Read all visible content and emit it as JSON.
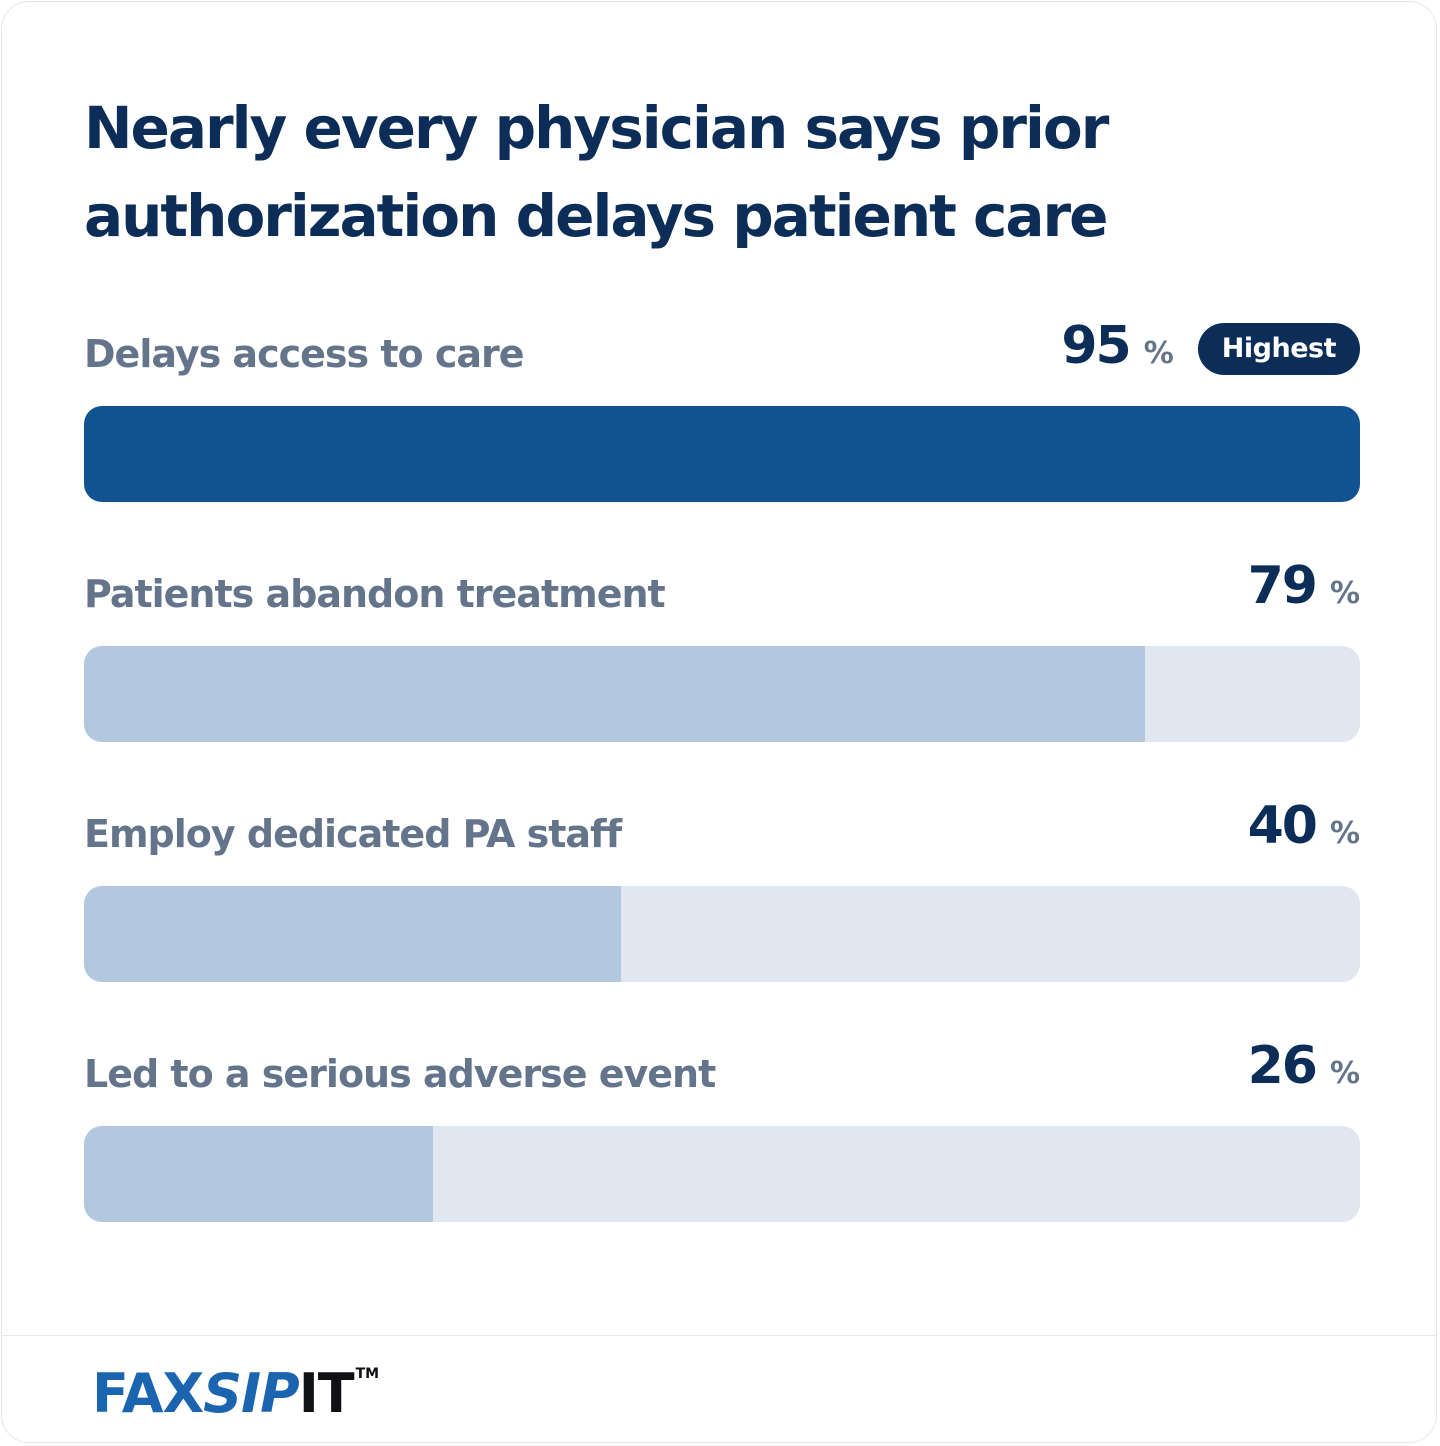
{
  "title": "Nearly every physician says prior authorization delays patient care",
  "chart_data": {
    "type": "bar",
    "orientation": "horizontal",
    "title": "Nearly every physician says prior authorization delays patient care",
    "categories": [
      "Delays access to care",
      "Patients abandon treatment",
      "Employ dedicated PA staff",
      "Led to a serious adverse event"
    ],
    "values": [
      95,
      79,
      40,
      26
    ],
    "unit": "%",
    "xlim": [
      0,
      100
    ],
    "highlight": {
      "index": 0,
      "label": "Highest"
    },
    "colors": {
      "highlight_bar": "#115390",
      "bar": "#b3c8de",
      "track": "#e1e7f0",
      "value_text": "#0b2d57",
      "label_text": "#64748b"
    }
  },
  "logo": {
    "part1": "FAX",
    "part2": "SIP",
    "part3": "IT",
    "tm": "TM",
    "colors": {
      "primary": "#1a64b0",
      "dark": "#0f1114"
    }
  }
}
